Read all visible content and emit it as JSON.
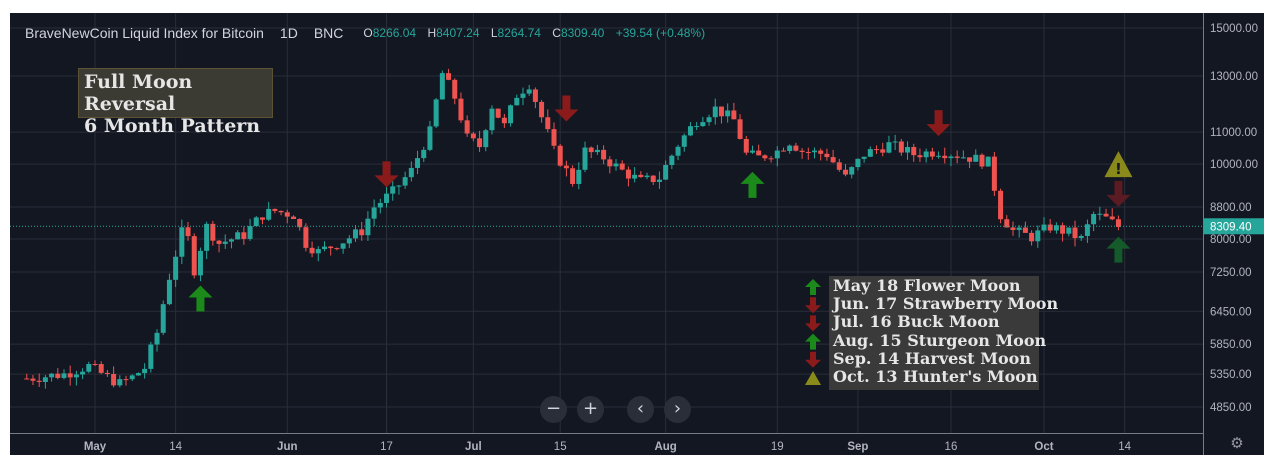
{
  "header": {
    "symbol": "BraveNewCoin Liquid Index for Bitcoin",
    "interval": "1D",
    "exchange": "BNC",
    "o_label": "O",
    "o_value": "8266.04",
    "h_label": "H",
    "h_value": "8407.24",
    "l_label": "L",
    "l_value": "8264.74",
    "c_label": "C",
    "c_value": "8309.40",
    "change": "+39.54 (+0.48%)"
  },
  "annotation": {
    "line1": "Full Moon Reversal",
    "line2": "6 Month Pattern"
  },
  "legend": [
    {
      "icon": "arrow-up-icon",
      "color": "#1b8a1b",
      "text": "May 18 Flower Moon"
    },
    {
      "icon": "arrow-down-icon",
      "color": "#8b1b1b",
      "text": "Jun. 17 Strawberry Moon"
    },
    {
      "icon": "arrow-down-icon",
      "color": "#8b1b1b",
      "text": "Jul. 16 Buck Moon"
    },
    {
      "icon": "arrow-up-icon",
      "color": "#1b8a1b",
      "text": "Aug. 15 Sturgeon Moon"
    },
    {
      "icon": "arrow-down-icon",
      "color": "#8b1b1b",
      "text": "Sep. 14 Harvest Moon"
    },
    {
      "icon": "warning-icon",
      "color": "#8a8a1b",
      "text": "Oct. 13 Hunter's Moon"
    }
  ],
  "nav_buttons": [
    {
      "icon": "zoom-out-icon",
      "glyph": "−"
    },
    {
      "icon": "zoom-in-icon",
      "glyph": "+"
    },
    {
      "icon": "scroll-left-icon",
      "glyph": "‹"
    },
    {
      "icon": "scroll-right-icon",
      "glyph": "›"
    }
  ],
  "settings_icon": "gear-icon",
  "colors": {
    "background": "#131722",
    "up": "#26a69a",
    "down": "#ef5350",
    "grid": "#2a2e39",
    "price_label": "#26a69a"
  },
  "chart_data": {
    "type": "candlestick",
    "title": "BraveNewCoin Liquid Index for Bitcoin · 1D · BNC",
    "y_scale": "log",
    "ylim": [
      4500,
      15600
    ],
    "y_ticks": [
      "15000.00",
      "13000.00",
      "11000.00",
      "10000.00",
      "8800.00",
      "8000.00",
      "7250.00",
      "6450.00",
      "5850.00",
      "5350.00",
      "4850.00"
    ],
    "y_tick_values": [
      15000,
      13000,
      11000,
      10000,
      8800,
      8000,
      7250,
      6450,
      5850,
      5350,
      4850
    ],
    "x_ticks": [
      "May",
      "14",
      "Jun",
      "17",
      "Jul",
      "15",
      "Aug",
      "19",
      "Sep",
      "16",
      "Oct",
      "14"
    ],
    "x_tick_dates": [
      "2019-05-01",
      "2019-05-14",
      "2019-06-01",
      "2019-06-17",
      "2019-07-01",
      "2019-07-15",
      "2019-08-01",
      "2019-08-19",
      "2019-09-01",
      "2019-09-16",
      "2019-10-01",
      "2019-10-14"
    ],
    "date_range": [
      "2019-04-20",
      "2019-10-14"
    ],
    "last_price": "8309.40",
    "last_price_value": 8309.4,
    "close_anchors": [
      {
        "date": "2019-04-20",
        "close": 5280
      },
      {
        "date": "2019-04-26",
        "close": 5350
      },
      {
        "date": "2019-04-30",
        "close": 5480
      },
      {
        "date": "2019-05-03",
        "close": 5300
      },
      {
        "date": "2019-05-05",
        "close": 5200
      },
      {
        "date": "2019-05-07",
        "close": 5300
      },
      {
        "date": "2019-05-09",
        "close": 5450
      },
      {
        "date": "2019-05-11",
        "close": 6050
      },
      {
        "date": "2019-05-13",
        "close": 7150
      },
      {
        "date": "2019-05-15",
        "close": 8150
      },
      {
        "date": "2019-05-16",
        "close": 8000
      },
      {
        "date": "2019-05-17",
        "close": 7300
      },
      {
        "date": "2019-05-19",
        "close": 8300
      },
      {
        "date": "2019-05-21",
        "close": 7900
      },
      {
        "date": "2019-05-25",
        "close": 8100
      },
      {
        "date": "2019-05-28",
        "close": 8600
      },
      {
        "date": "2019-05-30",
        "close": 8700
      },
      {
        "date": "2019-06-02",
        "close": 8600
      },
      {
        "date": "2019-06-04",
        "close": 7900
      },
      {
        "date": "2019-06-06",
        "close": 7700
      },
      {
        "date": "2019-06-10",
        "close": 7950
      },
      {
        "date": "2019-06-13",
        "close": 8200
      },
      {
        "date": "2019-06-15",
        "close": 8800
      },
      {
        "date": "2019-06-18",
        "close": 9200
      },
      {
        "date": "2019-06-21",
        "close": 9800
      },
      {
        "date": "2019-06-24",
        "close": 11000
      },
      {
        "date": "2019-06-26",
        "close": 13100
      },
      {
        "date": "2019-06-28",
        "close": 12200
      },
      {
        "date": "2019-06-30",
        "close": 10800
      },
      {
        "date": "2019-07-02",
        "close": 10550
      },
      {
        "date": "2019-07-04",
        "close": 11900
      },
      {
        "date": "2019-07-06",
        "close": 11200
      },
      {
        "date": "2019-07-08",
        "close": 12300
      },
      {
        "date": "2019-07-10",
        "close": 12700
      },
      {
        "date": "2019-07-12",
        "close": 11500
      },
      {
        "date": "2019-07-14",
        "close": 10400
      },
      {
        "date": "2019-07-17",
        "close": 9500
      },
      {
        "date": "2019-07-19",
        "close": 10400
      },
      {
        "date": "2019-07-22",
        "close": 10200
      },
      {
        "date": "2019-07-25",
        "close": 9800
      },
      {
        "date": "2019-07-28",
        "close": 9500
      },
      {
        "date": "2019-07-31",
        "close": 9600
      },
      {
        "date": "2019-08-03",
        "close": 10600
      },
      {
        "date": "2019-08-06",
        "close": 11400
      },
      {
        "date": "2019-08-09",
        "close": 11800
      },
      {
        "date": "2019-08-12",
        "close": 11400
      },
      {
        "date": "2019-08-14",
        "close": 10300
      },
      {
        "date": "2019-08-16",
        "close": 10200
      },
      {
        "date": "2019-08-19",
        "close": 10400
      },
      {
        "date": "2019-08-21",
        "close": 10700
      },
      {
        "date": "2019-08-23",
        "close": 10400
      },
      {
        "date": "2019-08-27",
        "close": 10300
      },
      {
        "date": "2019-08-30",
        "close": 9600
      },
      {
        "date": "2019-09-02",
        "close": 10300
      },
      {
        "date": "2019-09-06",
        "close": 10600
      },
      {
        "date": "2019-09-10",
        "close": 10300
      },
      {
        "date": "2019-09-14",
        "close": 10400
      },
      {
        "date": "2019-09-19",
        "close": 10200
      },
      {
        "date": "2019-09-22",
        "close": 10050
      },
      {
        "date": "2019-09-24",
        "close": 8600
      },
      {
        "date": "2019-09-26",
        "close": 8200
      },
      {
        "date": "2019-09-29",
        "close": 8050
      },
      {
        "date": "2019-10-02",
        "close": 8300
      },
      {
        "date": "2019-10-05",
        "close": 8150
      },
      {
        "date": "2019-10-07",
        "close": 8000
      },
      {
        "date": "2019-10-09",
        "close": 8600
      },
      {
        "date": "2019-10-11",
        "close": 8500
      },
      {
        "date": "2019-10-13",
        "close": 8300
      }
    ],
    "markers": [
      {
        "date": "2019-05-18",
        "price": 6700,
        "kind": "up",
        "color": "#1b8a1b"
      },
      {
        "date": "2019-06-17",
        "price": 9700,
        "kind": "down",
        "color": "#8b1b1b"
      },
      {
        "date": "2019-07-16",
        "price": 11800,
        "kind": "down",
        "color": "#8b1b1b"
      },
      {
        "date": "2019-08-15",
        "price": 9400,
        "kind": "up",
        "color": "#1b8a1b"
      },
      {
        "date": "2019-09-14",
        "price": 11300,
        "kind": "down",
        "color": "#8b1b1b"
      },
      {
        "date": "2019-10-13",
        "price": 10000,
        "kind": "warning",
        "color": "#8a8a1b"
      },
      {
        "date": "2019-10-13",
        "price": 9150,
        "kind": "down",
        "color": "#5a1b22"
      },
      {
        "date": "2019-10-13",
        "price": 7750,
        "kind": "up",
        "color": "#145a2a"
      }
    ]
  }
}
